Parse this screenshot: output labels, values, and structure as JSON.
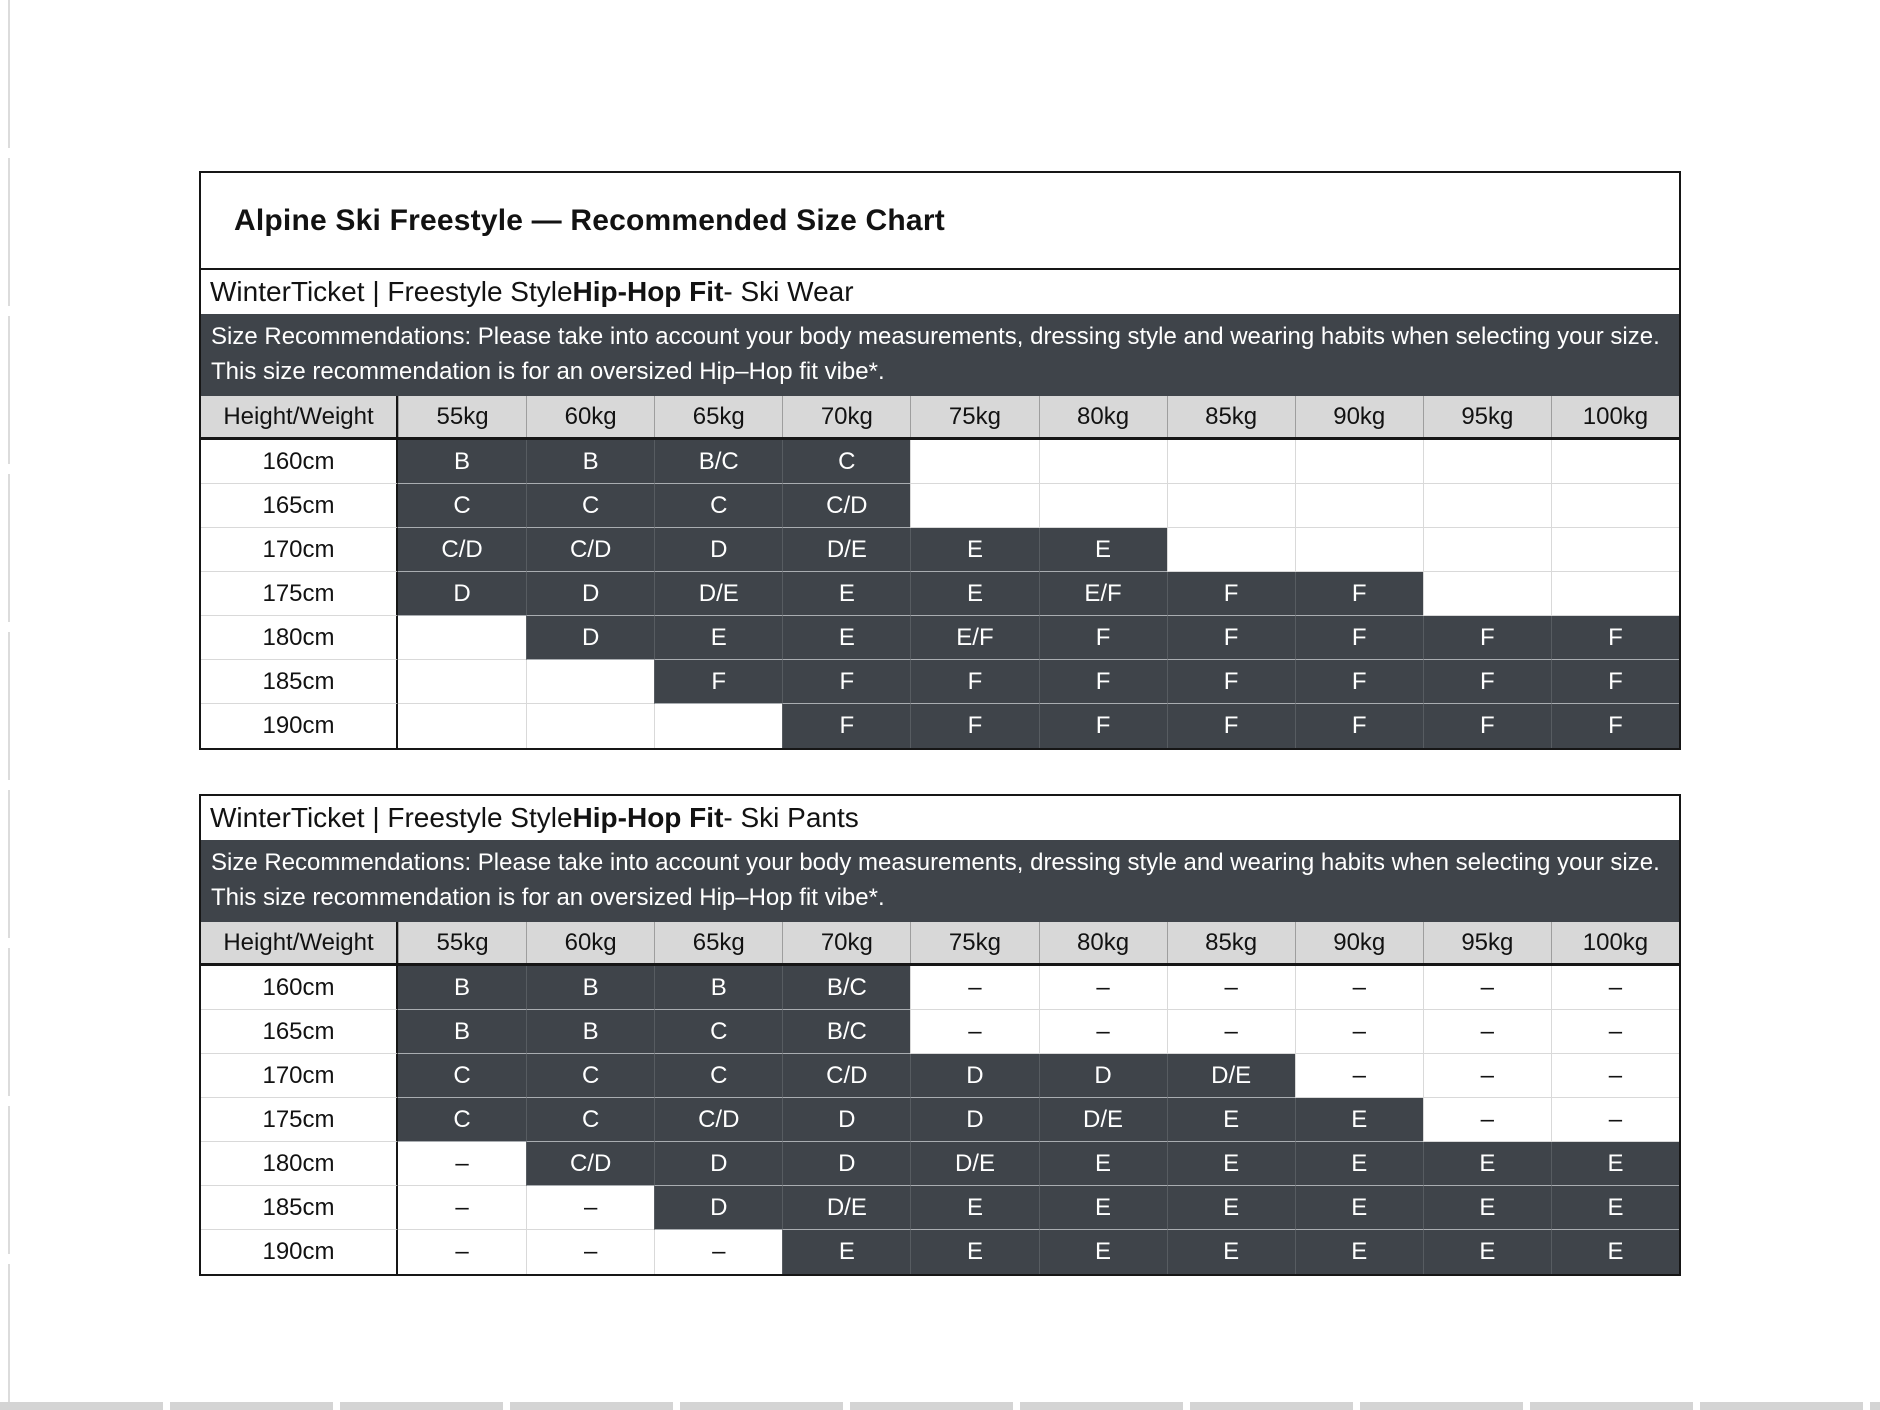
{
  "page": {
    "title": "Alpine Ski Freestyle — Recommended Size Chart"
  },
  "empty_marker": "–",
  "colors": {
    "cell_dark": "#3F444A",
    "header_bg": "#D8D8D8",
    "structural_border": "#161616",
    "gridline_light": "#D9D9D9"
  },
  "tables": [
    {
      "product": "Ski Wear",
      "subtitle": {
        "prefix": "WinterTicket | Freestyle Style ",
        "bold": "Hip-Hop Fit",
        "suffix": " - Ski Wear"
      },
      "description": "Size Recommendations: Please take into account your body measurements, dressing style and wearing habits when selecting your size. This size recommendation is for an oversized Hip–Hop fit vibe*.",
      "columns": [
        "Height/Weight",
        "55kg",
        "60kg",
        "65kg",
        "70kg",
        "75kg",
        "80kg",
        "85kg",
        "90kg",
        "95kg",
        "100kg"
      ],
      "rows": [
        {
          "label": "160cm",
          "cells": [
            "B",
            "B",
            "B/C",
            "C",
            "",
            "",
            "",
            "",
            "",
            ""
          ]
        },
        {
          "label": "165cm",
          "cells": [
            "C",
            "C",
            "C",
            "C/D",
            "",
            "",
            "",
            "",
            "",
            ""
          ]
        },
        {
          "label": "170cm",
          "cells": [
            "C/D",
            "C/D",
            "D",
            "D/E",
            "E",
            "E",
            "",
            "",
            "",
            ""
          ]
        },
        {
          "label": "175cm",
          "cells": [
            "D",
            "D",
            "D/E",
            "E",
            "E",
            "E/F",
            "F",
            "F",
            "",
            ""
          ]
        },
        {
          "label": "180cm",
          "cells": [
            "",
            "D",
            "E",
            "E",
            "E/F",
            "F",
            "F",
            "F",
            "F",
            "F"
          ]
        },
        {
          "label": "185cm",
          "cells": [
            "",
            "",
            "F",
            "F",
            "F",
            "F",
            "F",
            "F",
            "F",
            "F"
          ]
        },
        {
          "label": "190cm",
          "cells": [
            "",
            "",
            "",
            "F",
            "F",
            "F",
            "F",
            "F",
            "F",
            "F"
          ]
        }
      ]
    },
    {
      "product": "Ski Pants",
      "subtitle": {
        "prefix": "WinterTicket | Freestyle Style ",
        "bold": "Hip-Hop Fit",
        "suffix": " - Ski Pants"
      },
      "description": "Size Recommendations: Please take into account your body measurements, dressing style and wearing habits when selecting your size. This size recommendation is for an oversized Hip–Hop fit vibe*.",
      "columns": [
        "Height/Weight",
        "55kg",
        "60kg",
        "65kg",
        "70kg",
        "75kg",
        "80kg",
        "85kg",
        "90kg",
        "95kg",
        "100kg"
      ],
      "rows": [
        {
          "label": "160cm",
          "cells": [
            "B",
            "B",
            "B",
            "B/C",
            "–",
            "–",
            "–",
            "–",
            "–",
            "–"
          ]
        },
        {
          "label": "165cm",
          "cells": [
            "B",
            "B",
            "C",
            "B/C",
            "–",
            "–",
            "–",
            "–",
            "–",
            "–"
          ]
        },
        {
          "label": "170cm",
          "cells": [
            "C",
            "C",
            "C",
            "C/D",
            "D",
            "D",
            "D/E",
            "–",
            "–",
            "–"
          ]
        },
        {
          "label": "175cm",
          "cells": [
            "C",
            "C",
            "C/D",
            "D",
            "D",
            "D/E",
            "E",
            "E",
            "–",
            "–"
          ]
        },
        {
          "label": "180cm",
          "cells": [
            "–",
            "C/D",
            "D",
            "D",
            "D/E",
            "E",
            "E",
            "E",
            "E",
            "E"
          ]
        },
        {
          "label": "185cm",
          "cells": [
            "–",
            "–",
            "D",
            "D/E",
            "E",
            "E",
            "E",
            "E",
            "E",
            "E"
          ]
        },
        {
          "label": "190cm",
          "cells": [
            "–",
            "–",
            "–",
            "E",
            "E",
            "E",
            "E",
            "E",
            "E",
            "E"
          ]
        }
      ]
    }
  ]
}
